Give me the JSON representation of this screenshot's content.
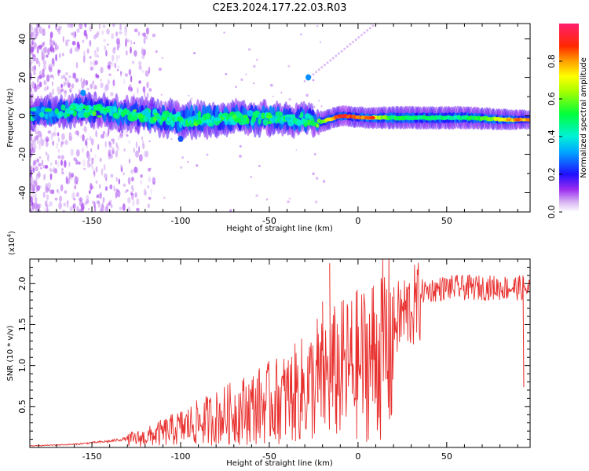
{
  "title": "C2E3.2024.177.22.03.R03",
  "chart_data": [
    {
      "type": "heatmap",
      "name": "spectrogram",
      "xlabel": "Height of straight line (km)",
      "ylabel": "Frequency (Hz)",
      "xlim": [
        -185,
        97
      ],
      "ylim": [
        -50,
        48
      ],
      "xticks": [
        -150,
        -100,
        -50,
        0,
        50
      ],
      "yticks": [
        -40,
        -20,
        0,
        20,
        40
      ],
      "ridge": [
        {
          "x": -185,
          "y": 1,
          "halfwidth": 4,
          "amp": 0.35
        },
        {
          "x": -155,
          "y": 3,
          "halfwidth": 5,
          "amp": 0.45
        },
        {
          "x": -120,
          "y": 0,
          "halfwidth": 5,
          "amp": 0.45
        },
        {
          "x": -100,
          "y": -2,
          "halfwidth": 6,
          "amp": 0.45
        },
        {
          "x": -60,
          "y": -1,
          "halfwidth": 5,
          "amp": 0.45
        },
        {
          "x": -30,
          "y": -2,
          "halfwidth": 5,
          "amp": 0.45
        },
        {
          "x": -20,
          "y": -3,
          "halfwidth": 2.5,
          "amp": 0.6
        },
        {
          "x": -10,
          "y": 0,
          "halfwidth": 2.5,
          "amp": 0.9
        },
        {
          "x": 5,
          "y": -1,
          "halfwidth": 2.5,
          "amp": 0.8
        },
        {
          "x": 20,
          "y": -1,
          "halfwidth": 3,
          "amp": 0.5
        },
        {
          "x": 60,
          "y": -1,
          "halfwidth": 3,
          "amp": 0.45
        },
        {
          "x": 85,
          "y": -2,
          "halfwidth": 2.5,
          "amp": 0.75
        },
        {
          "x": 97,
          "y": -2,
          "halfwidth": 2,
          "amp": 0.8
        }
      ],
      "features": [
        {
          "x": -28,
          "y": 20,
          "amp": 0.3
        },
        {
          "x": -100,
          "y": -12,
          "amp": 0.25
        },
        {
          "x": -155,
          "y": 12,
          "amp": 0.3
        }
      ]
    },
    {
      "type": "line",
      "name": "snr",
      "xlabel": "Height of straight line (km)",
      "ylabel": "SNR (10 * v/v)",
      "ylabel_exponent_base": "(x10",
      "ylabel_exponent_power": "4",
      "ylabel_exponent_close": ")",
      "xlim": [
        -185,
        97
      ],
      "ylim": [
        0,
        23000
      ],
      "xticks": [
        -150,
        -100,
        -50,
        0,
        50
      ],
      "yticks": [
        5000,
        10000,
        15000,
        20000
      ],
      "ytick_labels": [
        "0.5",
        "1.0",
        "1.5",
        "2.0"
      ],
      "color": "#e8312f",
      "envelope": [
        {
          "x": -185,
          "y": 200
        },
        {
          "x": -160,
          "y": 400
        },
        {
          "x": -140,
          "y": 800
        },
        {
          "x": -120,
          "y": 1500
        },
        {
          "x": -100,
          "y": 3000
        },
        {
          "x": -80,
          "y": 4500
        },
        {
          "x": -60,
          "y": 6000
        },
        {
          "x": -40,
          "y": 7500
        },
        {
          "x": -25,
          "y": 9500
        },
        {
          "x": -15,
          "y": 11000
        },
        {
          "x": -5,
          "y": 12000
        },
        {
          "x": 5,
          "y": 13000
        },
        {
          "x": 15,
          "y": 15000
        },
        {
          "x": 25,
          "y": 17500
        },
        {
          "x": 35,
          "y": 19000
        },
        {
          "x": 50,
          "y": 19500
        },
        {
          "x": 70,
          "y": 19500
        },
        {
          "x": 90,
          "y": 19500
        },
        {
          "x": 97,
          "y": 19300
        }
      ],
      "peaks": [
        {
          "x": -16,
          "y": 22500
        },
        {
          "x": -20,
          "y": 17800
        },
        {
          "x": -23,
          "y": 15700
        },
        {
          "x": 93,
          "y": 21000
        }
      ]
    }
  ],
  "colorbar": {
    "label": "Normalized spectral amplitude",
    "ticks": [
      "0.0",
      "0.2",
      "0.4",
      "0.6",
      "0.8"
    ],
    "tick_values": [
      0,
      0.2,
      0.4,
      0.6,
      0.8
    ],
    "range": [
      0,
      1
    ]
  }
}
